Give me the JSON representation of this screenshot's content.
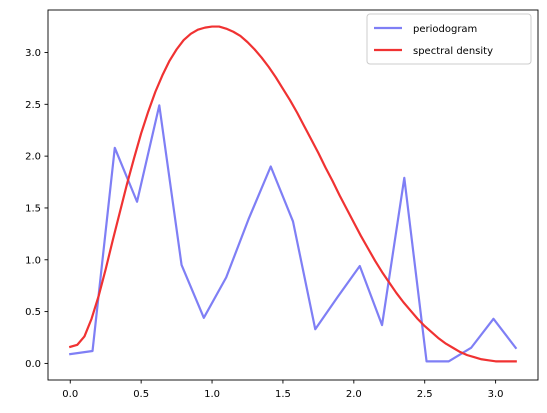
{
  "chart_data": {
    "type": "line",
    "title": "",
    "xlabel": "",
    "ylabel": "",
    "xlim": [
      -0.157,
      3.299
    ],
    "ylim": [
      -0.16,
      3.41
    ],
    "xticks": [
      0.0,
      0.5,
      1.0,
      1.5,
      2.0,
      2.5,
      3.0
    ],
    "xtick_labels": [
      "0.0",
      "0.5",
      "1.0",
      "1.5",
      "2.0",
      "2.5",
      "3.0"
    ],
    "yticks": [
      0.0,
      0.5,
      1.0,
      1.5,
      2.0,
      2.5,
      3.0
    ],
    "ytick_labels": [
      "0.0",
      "0.5",
      "1.0",
      "1.5",
      "2.0",
      "2.5",
      "3.0"
    ],
    "grid": false,
    "legend_position": "top-right",
    "series": [
      {
        "name": "periodogram",
        "color": "#7f7ff5",
        "x": [
          0.0,
          0.157,
          0.314,
          0.471,
          0.628,
          0.785,
          0.942,
          1.1,
          1.257,
          1.414,
          1.571,
          1.728,
          1.885,
          2.042,
          2.199,
          2.356,
          2.513,
          2.67,
          2.827,
          2.985,
          3.142
        ],
        "y": [
          0.09,
          0.12,
          2.08,
          1.56,
          2.49,
          0.95,
          0.44,
          0.83,
          1.39,
          1.9,
          1.37,
          0.33,
          0.64,
          0.94,
          0.37,
          1.79,
          0.02,
          0.02,
          0.15,
          0.43,
          0.15
        ]
      },
      {
        "name": "spectral density",
        "color": "#f03232",
        "x": [
          0.0,
          0.05,
          0.1,
          0.15,
          0.2,
          0.25,
          0.3,
          0.35,
          0.4,
          0.45,
          0.5,
          0.55,
          0.6,
          0.65,
          0.7,
          0.75,
          0.8,
          0.85,
          0.9,
          0.95,
          1.0,
          1.05,
          1.1,
          1.15,
          1.2,
          1.25,
          1.3,
          1.35,
          1.4,
          1.45,
          1.5,
          1.55,
          1.6,
          1.65,
          1.7,
          1.75,
          1.8,
          1.85,
          1.9,
          1.95,
          2.0,
          2.05,
          2.1,
          2.15,
          2.2,
          2.25,
          2.3,
          2.35,
          2.4,
          2.45,
          2.5,
          2.55,
          2.6,
          2.65,
          2.7,
          2.75,
          2.8,
          2.85,
          2.9,
          2.95,
          3.0,
          3.05,
          3.1,
          3.142
        ],
        "y": [
          0.16,
          0.18,
          0.26,
          0.43,
          0.65,
          0.91,
          1.19,
          1.46,
          1.73,
          1.98,
          2.22,
          2.43,
          2.62,
          2.78,
          2.92,
          3.03,
          3.12,
          3.18,
          3.22,
          3.24,
          3.25,
          3.25,
          3.23,
          3.2,
          3.16,
          3.1,
          3.03,
          2.95,
          2.86,
          2.76,
          2.65,
          2.54,
          2.42,
          2.29,
          2.16,
          2.03,
          1.89,
          1.76,
          1.62,
          1.49,
          1.36,
          1.23,
          1.11,
          0.99,
          0.88,
          0.78,
          0.68,
          0.59,
          0.51,
          0.43,
          0.36,
          0.3,
          0.24,
          0.19,
          0.15,
          0.11,
          0.08,
          0.06,
          0.04,
          0.03,
          0.02,
          0.02,
          0.02,
          0.02
        ]
      }
    ]
  }
}
